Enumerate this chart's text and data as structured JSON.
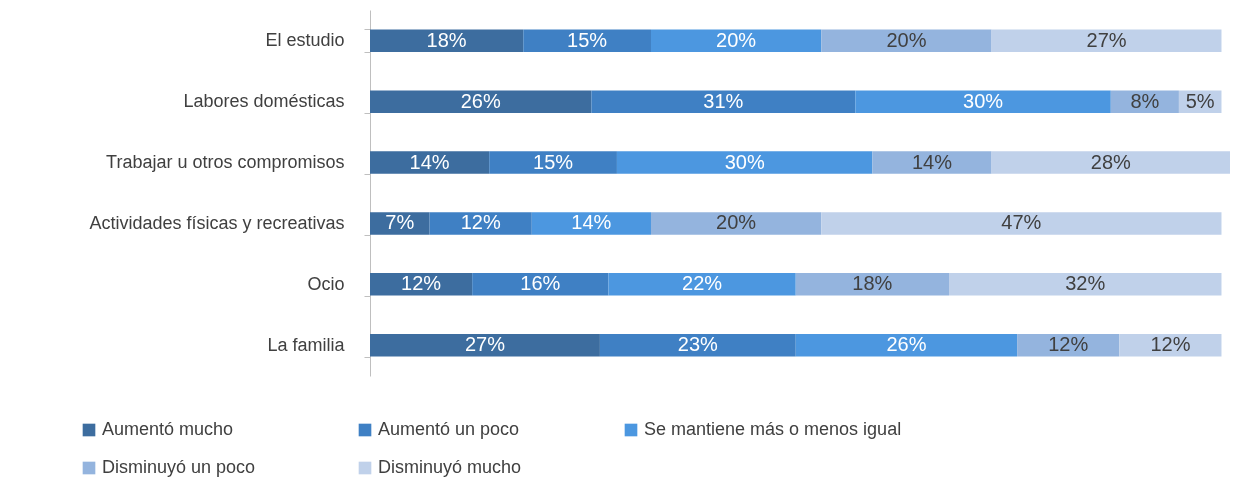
{
  "chart_data": {
    "type": "bar",
    "orientation": "horizontal",
    "stacked": true,
    "legend": "bottom",
    "categories": [
      "El estudio",
      "Labores domésticas",
      "Trabajar u otros compromisos",
      "Actividades físicas y recreativas",
      "Ocio",
      "La familia"
    ],
    "series": [
      {
        "name": "Aumentó mucho",
        "color": "#3d6d9f",
        "values": [
          18,
          26,
          14,
          7,
          12,
          27
        ],
        "value_labels": [
          "18%",
          "26%",
          "14%",
          "7%",
          "12%",
          "27%"
        ]
      },
      {
        "name": "Aumentó un poco",
        "color": "#3f80c4",
        "values": [
          15,
          31,
          15,
          12,
          16,
          23
        ],
        "value_labels": [
          "15%",
          "31%",
          "15%",
          "12%",
          "16%",
          "23%"
        ]
      },
      {
        "name": "Se mantiene más o menos igual",
        "color": "#4c97e0",
        "values": [
          20,
          30,
          30,
          14,
          22,
          26
        ],
        "value_labels": [
          "20%",
          "30%",
          "30%",
          "14%",
          "22%",
          "26%"
        ]
      },
      {
        "name": "Disminuyó un poco",
        "color": "#94b4de",
        "values": [
          20,
          8,
          14,
          20,
          18,
          12
        ],
        "value_labels": [
          "20%",
          "8%",
          "14%",
          "20%",
          "18%",
          "12%"
        ]
      },
      {
        "name": "Disminuyó mucho",
        "color": "#c0d1ea",
        "values": [
          27,
          5,
          28,
          47,
          32,
          12
        ],
        "value_labels": [
          "27%",
          "5%",
          "28%",
          "47%",
          "32%",
          "12%"
        ]
      }
    ]
  }
}
